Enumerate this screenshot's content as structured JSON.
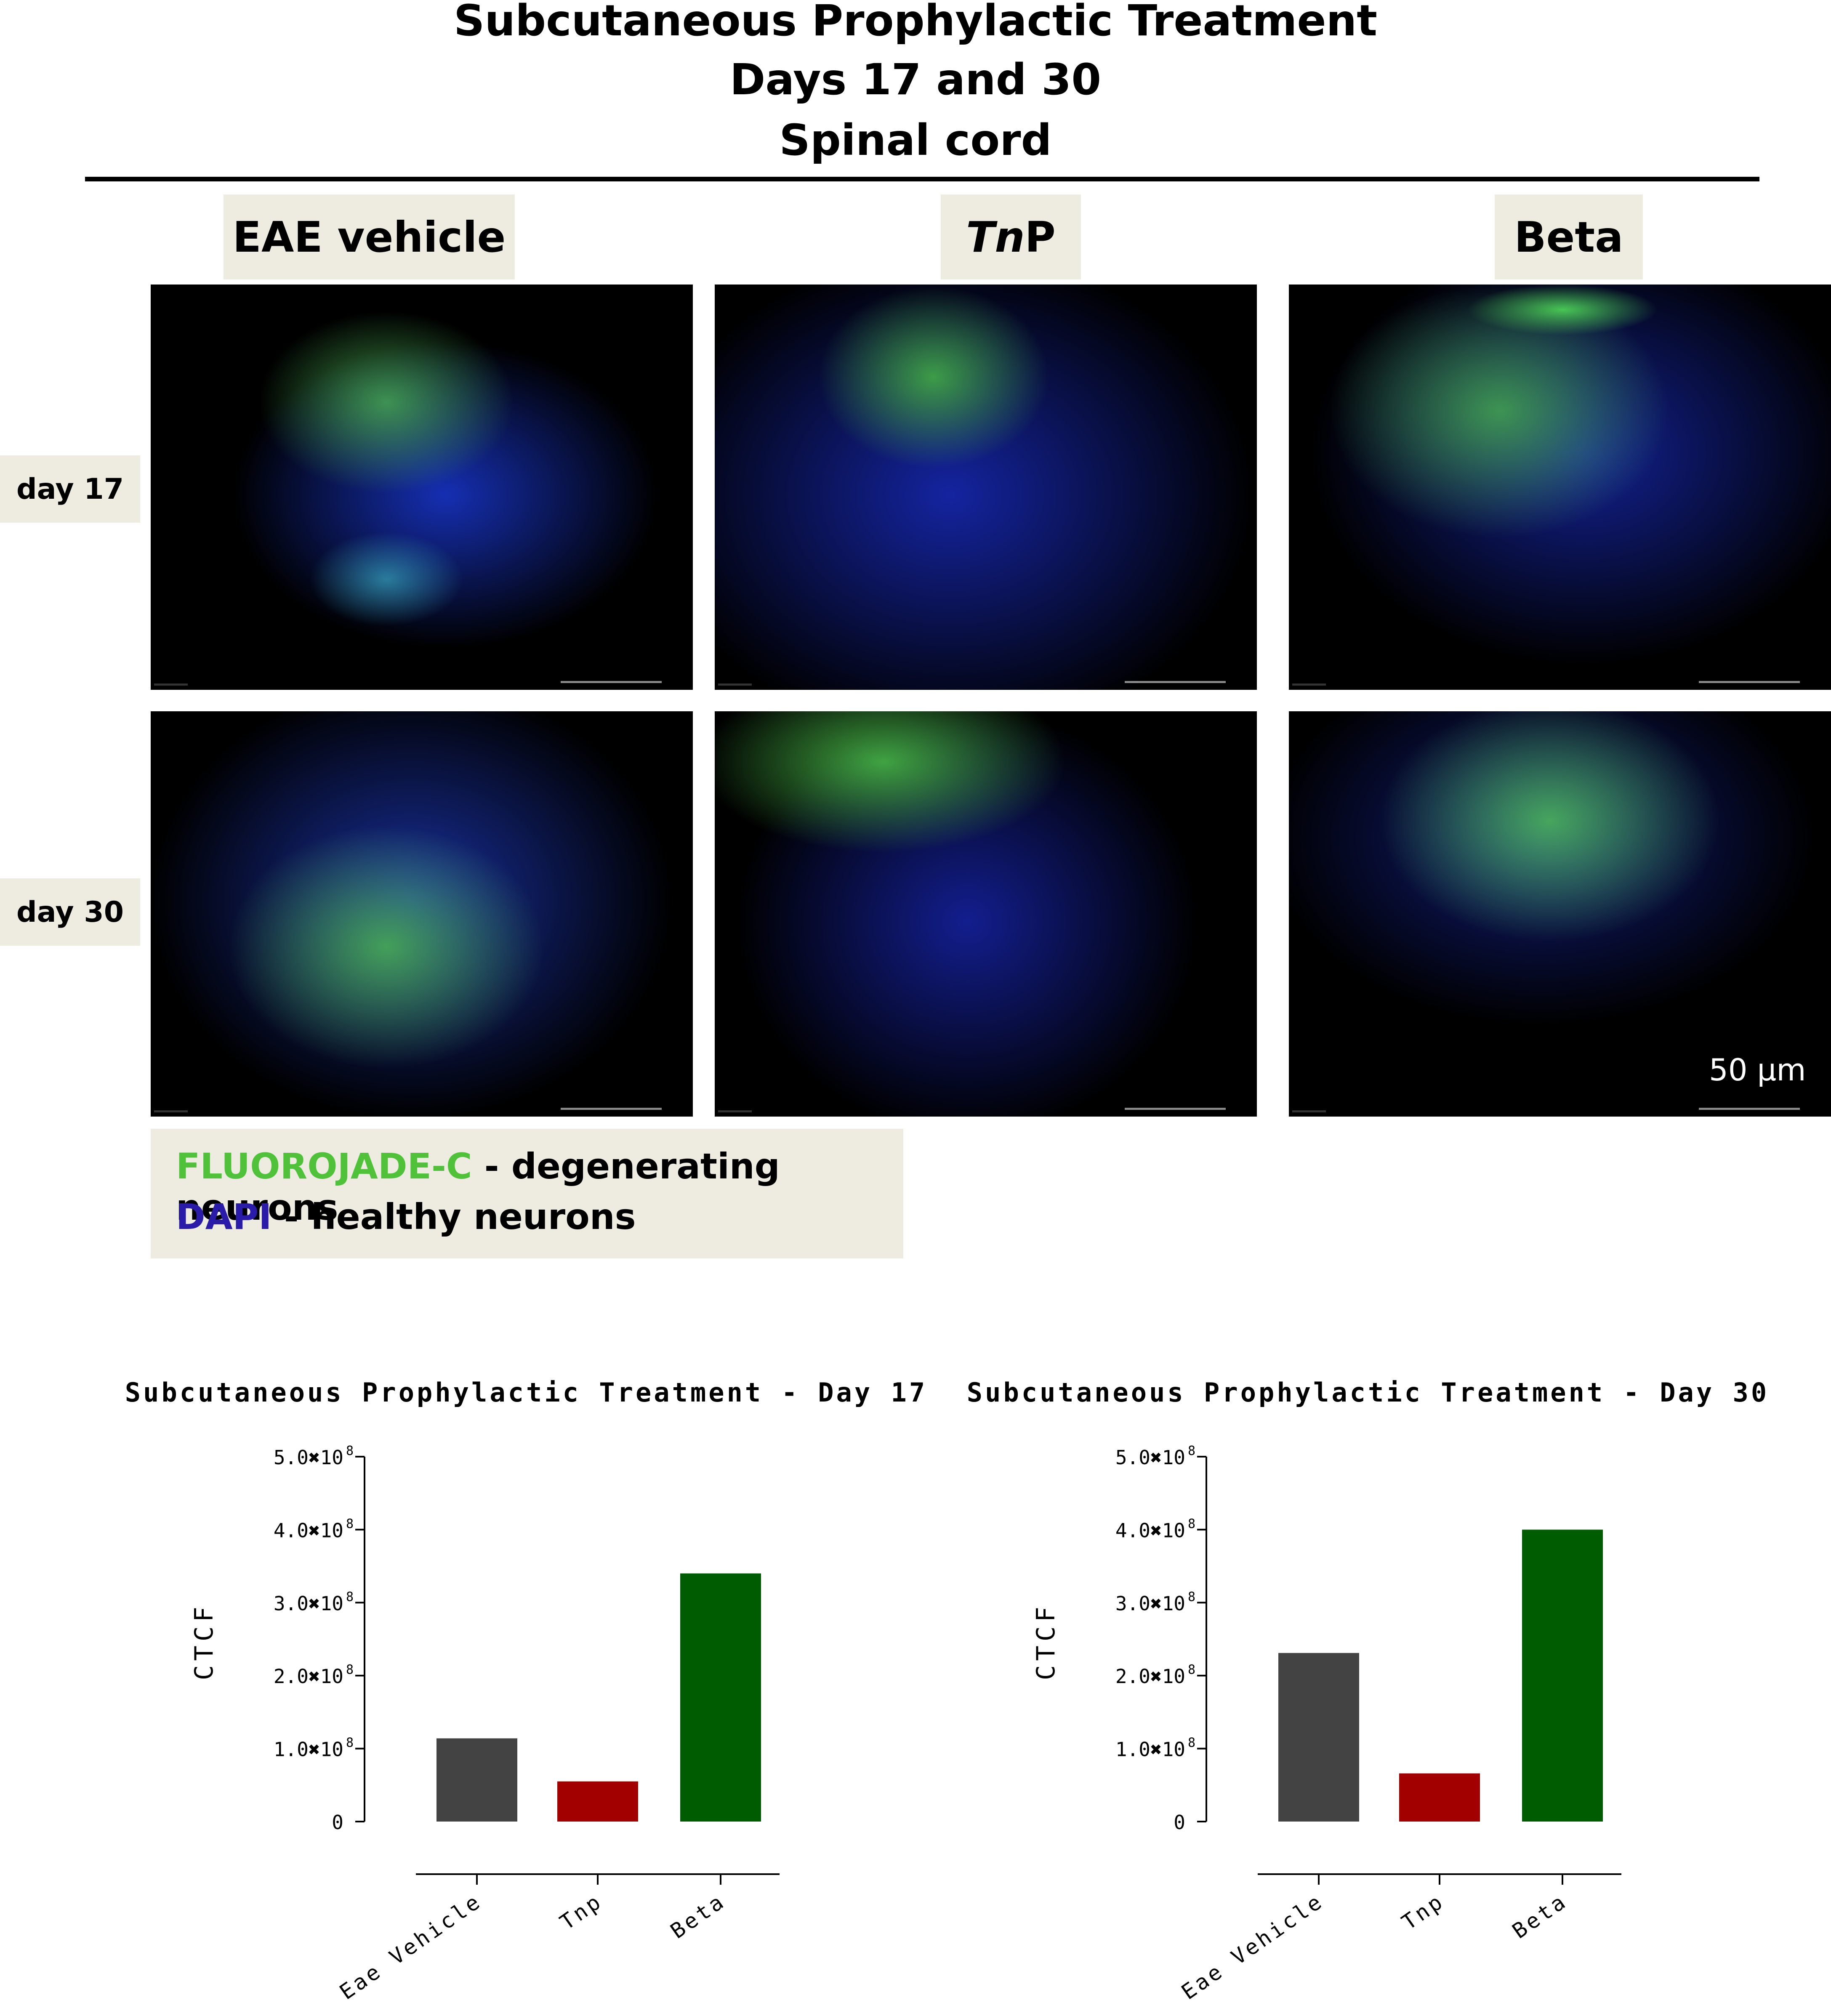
{
  "figure": {
    "title_lines": [
      "Subcutaneous Prophylactic Treatment",
      "Days 17 and 30",
      "Spinal cord"
    ],
    "columns": [
      {
        "label": "EAE vehicle",
        "italic_part": "",
        "rest": ""
      },
      {
        "label": "",
        "italic_part": "Tn",
        "rest": "P"
      },
      {
        "label": "Beta",
        "italic_part": "",
        "rest": ""
      }
    ],
    "rows": [
      "day 17",
      "day 30"
    ],
    "scale_bar_label": "50 µm",
    "legend": {
      "line1_stain": "FLUOROJADE-C",
      "line1_desc": " - degenerating neurons",
      "line2_stain": "DAPI",
      "line2_desc": " - healthy neurons",
      "fluorojade_color": "#4fc23a",
      "dapi_color": "#2a1ca8"
    }
  },
  "chart_data": [
    {
      "type": "bar",
      "title": "Subcutaneous Prophylactic Treatment - Day 17",
      "ylabel": "CTCF",
      "xlabel": "",
      "categories": [
        "Eae Vehicle",
        "Tnp",
        "Beta"
      ],
      "values": [
        114000000,
        55000000,
        340000000
      ],
      "colors": [
        "#434343",
        "#a20000",
        "#005c00"
      ],
      "ylim": [
        0,
        500000000
      ],
      "yticks": [
        {
          "value": 0,
          "label": "0",
          "exp": ""
        },
        {
          "value": 100000000,
          "label": "1.0✖10",
          "exp": "8"
        },
        {
          "value": 200000000,
          "label": "2.0✖10",
          "exp": "8"
        },
        {
          "value": 300000000,
          "label": "3.0✖10",
          "exp": "8"
        },
        {
          "value": 400000000,
          "label": "4.0✖10",
          "exp": "8"
        },
        {
          "value": 500000000,
          "label": "5.0✖10",
          "exp": "8"
        }
      ],
      "grid": false,
      "legend": "none"
    },
    {
      "type": "bar",
      "title": "Subcutaneous Prophylactic Treatment - Day 30",
      "ylabel": "CTCF",
      "xlabel": "",
      "categories": [
        "Eae Vehicle",
        "Tnp",
        "Beta"
      ],
      "values": [
        231000000,
        66000000,
        400000000
      ],
      "colors": [
        "#434343",
        "#a20000",
        "#005c00"
      ],
      "ylim": [
        0,
        500000000
      ],
      "yticks": [
        {
          "value": 0,
          "label": "0",
          "exp": ""
        },
        {
          "value": 100000000,
          "label": "1.0✖10",
          "exp": "8"
        },
        {
          "value": 200000000,
          "label": "2.0✖10",
          "exp": "8"
        },
        {
          "value": 300000000,
          "label": "3.0✖10",
          "exp": "8"
        },
        {
          "value": 400000000,
          "label": "4.0✖10",
          "exp": "8"
        },
        {
          "value": 500000000,
          "label": "5.0✖10",
          "exp": "8"
        }
      ],
      "grid": false,
      "legend": "none"
    }
  ]
}
